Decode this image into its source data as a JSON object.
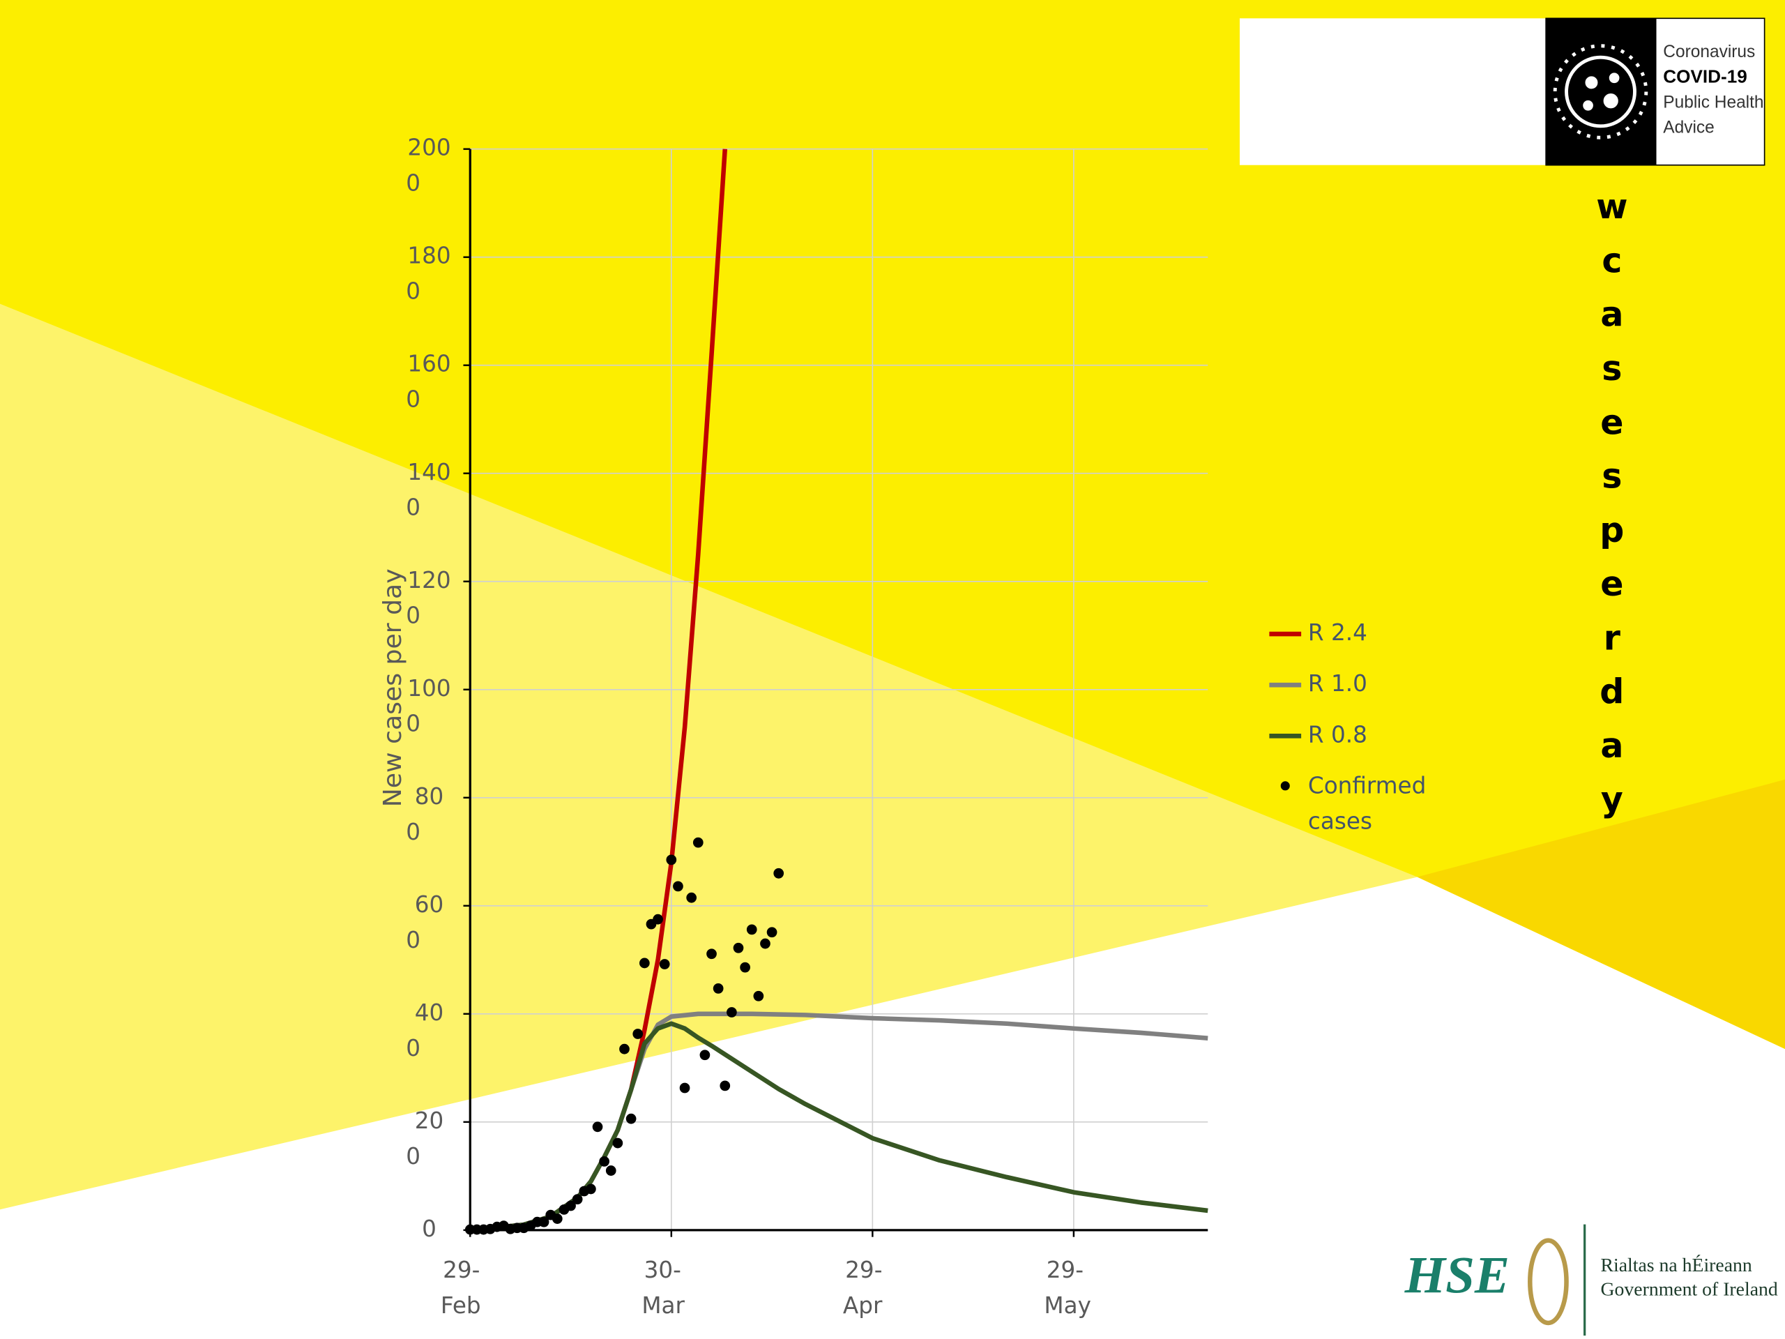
{
  "chart_data": {
    "type": "line",
    "title": "wcasesperday",
    "y_label": "New cases per day",
    "xlim": [
      0,
      110
    ],
    "xticks": [
      {
        "value": 0,
        "label": "29-Feb"
      },
      {
        "value": 30,
        "label": "30-Mar"
      },
      {
        "value": 60,
        "label": "29-Apr"
      },
      {
        "value": 90,
        "label": "29-May"
      }
    ],
    "ylim": [
      0,
      2000
    ],
    "yticks": [
      0,
      200,
      400,
      600,
      800,
      1000,
      1200,
      1400,
      1600,
      1800,
      2000
    ],
    "grid": true,
    "legend": "right",
    "series": [
      {
        "name": "R 2.4",
        "type": "line",
        "color": "#c00000",
        "x": [
          0,
          4,
          8,
          12,
          16,
          18,
          20,
          22,
          24,
          26,
          28,
          30,
          32,
          34,
          36,
          38
        ],
        "values": [
          2,
          5,
          10,
          25,
          60,
          90,
          135,
          185,
          260,
          370,
          500,
          680,
          930,
          1250,
          1620,
          2000
        ]
      },
      {
        "name": "R 1.0",
        "type": "line",
        "color": "#808080",
        "x": [
          0,
          4,
          8,
          12,
          16,
          18,
          20,
          22,
          24,
          26,
          28,
          30,
          34,
          42,
          50,
          60,
          70,
          80,
          90,
          100,
          110
        ],
        "values": [
          2,
          5,
          10,
          25,
          60,
          90,
          135,
          185,
          260,
          335,
          380,
          395,
          400,
          400,
          398,
          392,
          388,
          382,
          373,
          365,
          355
        ]
      },
      {
        "name": "R 0.8",
        "type": "line",
        "color": "#375623",
        "x": [
          0,
          4,
          8,
          12,
          16,
          18,
          20,
          22,
          24,
          26,
          28,
          30,
          32,
          34,
          36,
          38,
          42,
          46,
          50,
          60,
          70,
          80,
          90,
          100,
          110
        ],
        "values": [
          2,
          5,
          10,
          25,
          60,
          90,
          135,
          185,
          260,
          345,
          373,
          382,
          373,
          356,
          341,
          325,
          293,
          261,
          233,
          170,
          129,
          98,
          70,
          51,
          36
        ]
      },
      {
        "name": "Confirmed cases",
        "type": "scatter",
        "color": "#000000",
        "x": [
          0,
          1,
          2,
          3,
          4,
          5,
          6,
          7,
          8,
          9,
          10,
          11,
          12,
          13,
          14,
          15,
          16,
          17,
          18,
          19,
          20,
          21,
          22,
          23,
          24,
          25,
          26,
          27,
          28,
          29,
          30,
          31,
          32,
          33,
          34,
          35,
          36,
          37,
          38,
          39,
          40,
          41,
          42,
          43,
          44,
          45,
          46
        ],
        "values": [
          1,
          1,
          1,
          2,
          6,
          8,
          2,
          4,
          4,
          8,
          15,
          15,
          28,
          21,
          38,
          45,
          57,
          72,
          76,
          191,
          127,
          110,
          161,
          335,
          206,
          363,
          494,
          566,
          575,
          492,
          685,
          636,
          263,
          615,
          717,
          324,
          511,
          447,
          267,
          403,
          522,
          486,
          556,
          433,
          530,
          551,
          660
        ]
      }
    ]
  },
  "logo": {
    "lines": [
      "Coronavirus",
      "COVID-19",
      "Public Health",
      "Advice"
    ]
  },
  "footer": {
    "hse": "HSE",
    "gov_line1": "Rialtas na hÉireann",
    "gov_line2": "Government of Ireland"
  }
}
